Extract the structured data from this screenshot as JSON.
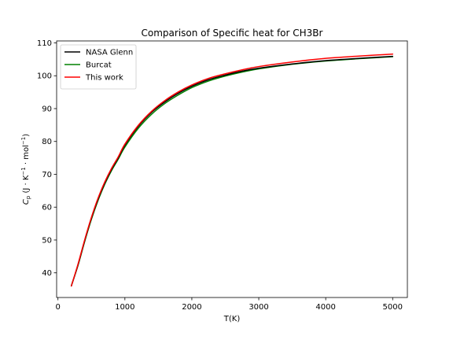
{
  "chart_data": {
    "type": "line",
    "title": "Comparison of Specific heat for CH3Br",
    "xlabel": "T(K)",
    "ylabel": "Cp (J·K⁻¹·mol⁻¹)",
    "ylabel_parts": {
      "sym": "C",
      "sub": "p",
      "open": " (J · K",
      "sup1": "−1",
      "mid": " · mol",
      "sup2": "−1",
      "close": ")"
    },
    "xlim": [
      -20,
      5220
    ],
    "ylim": [
      32.5,
      110.6
    ],
    "xticks": [
      0,
      1000,
      2000,
      3000,
      4000,
      5000
    ],
    "yticks": [
      40,
      50,
      60,
      70,
      80,
      90,
      100,
      110
    ],
    "legend_position": "upper-left",
    "x": [
      200,
      300,
      400,
      500,
      600,
      700,
      800,
      900,
      1000,
      1200,
      1400,
      1600,
      1800,
      2000,
      2250,
      2500,
      2750,
      3000,
      3500,
      4000,
      4500,
      5000
    ],
    "series": [
      {
        "name": "NASA Glenn",
        "color": "#000000",
        "values": [
          36.0,
          42.5,
          49.9,
          56.7,
          62.5,
          67.4,
          71.5,
          75.0,
          78.9,
          84.6,
          88.9,
          92.1,
          94.7,
          96.8,
          98.8,
          100.2,
          101.4,
          102.3,
          103.6,
          104.6,
          105.3,
          105.9
        ]
      },
      {
        "name": "Burcat",
        "color": "#008000",
        "values": [
          36.1,
          42.3,
          49.6,
          56.3,
          62.1,
          67.0,
          71.1,
          74.6,
          78.3,
          84.0,
          88.3,
          91.6,
          94.2,
          96.4,
          98.4,
          99.9,
          101.1,
          102.1,
          103.5,
          104.5,
          105.2,
          105.8
        ]
      },
      {
        "name": "This work",
        "color": "#ff0000",
        "values": [
          36.0,
          42.7,
          50.1,
          56.9,
          62.8,
          67.7,
          71.8,
          75.3,
          79.2,
          84.9,
          89.2,
          92.5,
          95.1,
          97.2,
          99.2,
          100.6,
          101.8,
          102.8,
          104.2,
          105.3,
          106.0,
          106.6
        ]
      }
    ]
  }
}
